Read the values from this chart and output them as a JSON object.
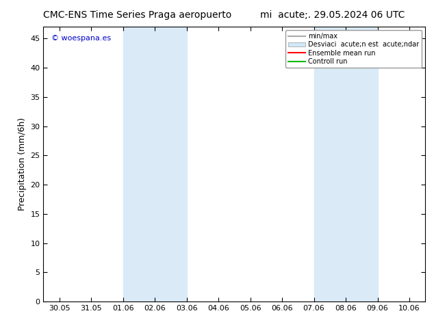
{
  "title_left": "CMC-ENS Time Series Praga aeropuerto",
  "title_right": "mi  acute;. 29.05.2024 06 UTC",
  "ylabel": "Precipitation (mm/6h)",
  "watermark": "© woespana.es",
  "xlim_dates": [
    "30.05",
    "31.05",
    "01.06",
    "02.06",
    "03.06",
    "04.06",
    "05.06",
    "06.06",
    "07.06",
    "08.06",
    "09.06",
    "10.06"
  ],
  "ylim": [
    0,
    47
  ],
  "yticks": [
    0,
    5,
    10,
    15,
    20,
    25,
    30,
    35,
    40,
    45
  ],
  "shaded_bands": [
    {
      "xstart": 2,
      "xend": 4,
      "color": "#daeaf7"
    },
    {
      "xstart": 8,
      "xend": 10,
      "color": "#daeaf7"
    }
  ],
  "legend_items": [
    {
      "label": "min/max",
      "color": "#aaaaaa",
      "lw": 1.5,
      "type": "line"
    },
    {
      "label": "Desviaci  acute;n est  acute;ndar",
      "color": "#d0e8f8",
      "lw": 8,
      "type": "patch"
    },
    {
      "label": "Ensemble mean run",
      "color": "#ff0000",
      "lw": 1.5,
      "type": "line"
    },
    {
      "label": "Controll run",
      "color": "#00bb00",
      "lw": 1.5,
      "type": "line"
    }
  ],
  "bg_color": "#ffffff",
  "axis_bg": "#ffffff",
  "title_fontsize": 10,
  "tick_fontsize": 8,
  "label_fontsize": 9,
  "watermark_color": "#0000cc",
  "watermark_fontsize": 8
}
